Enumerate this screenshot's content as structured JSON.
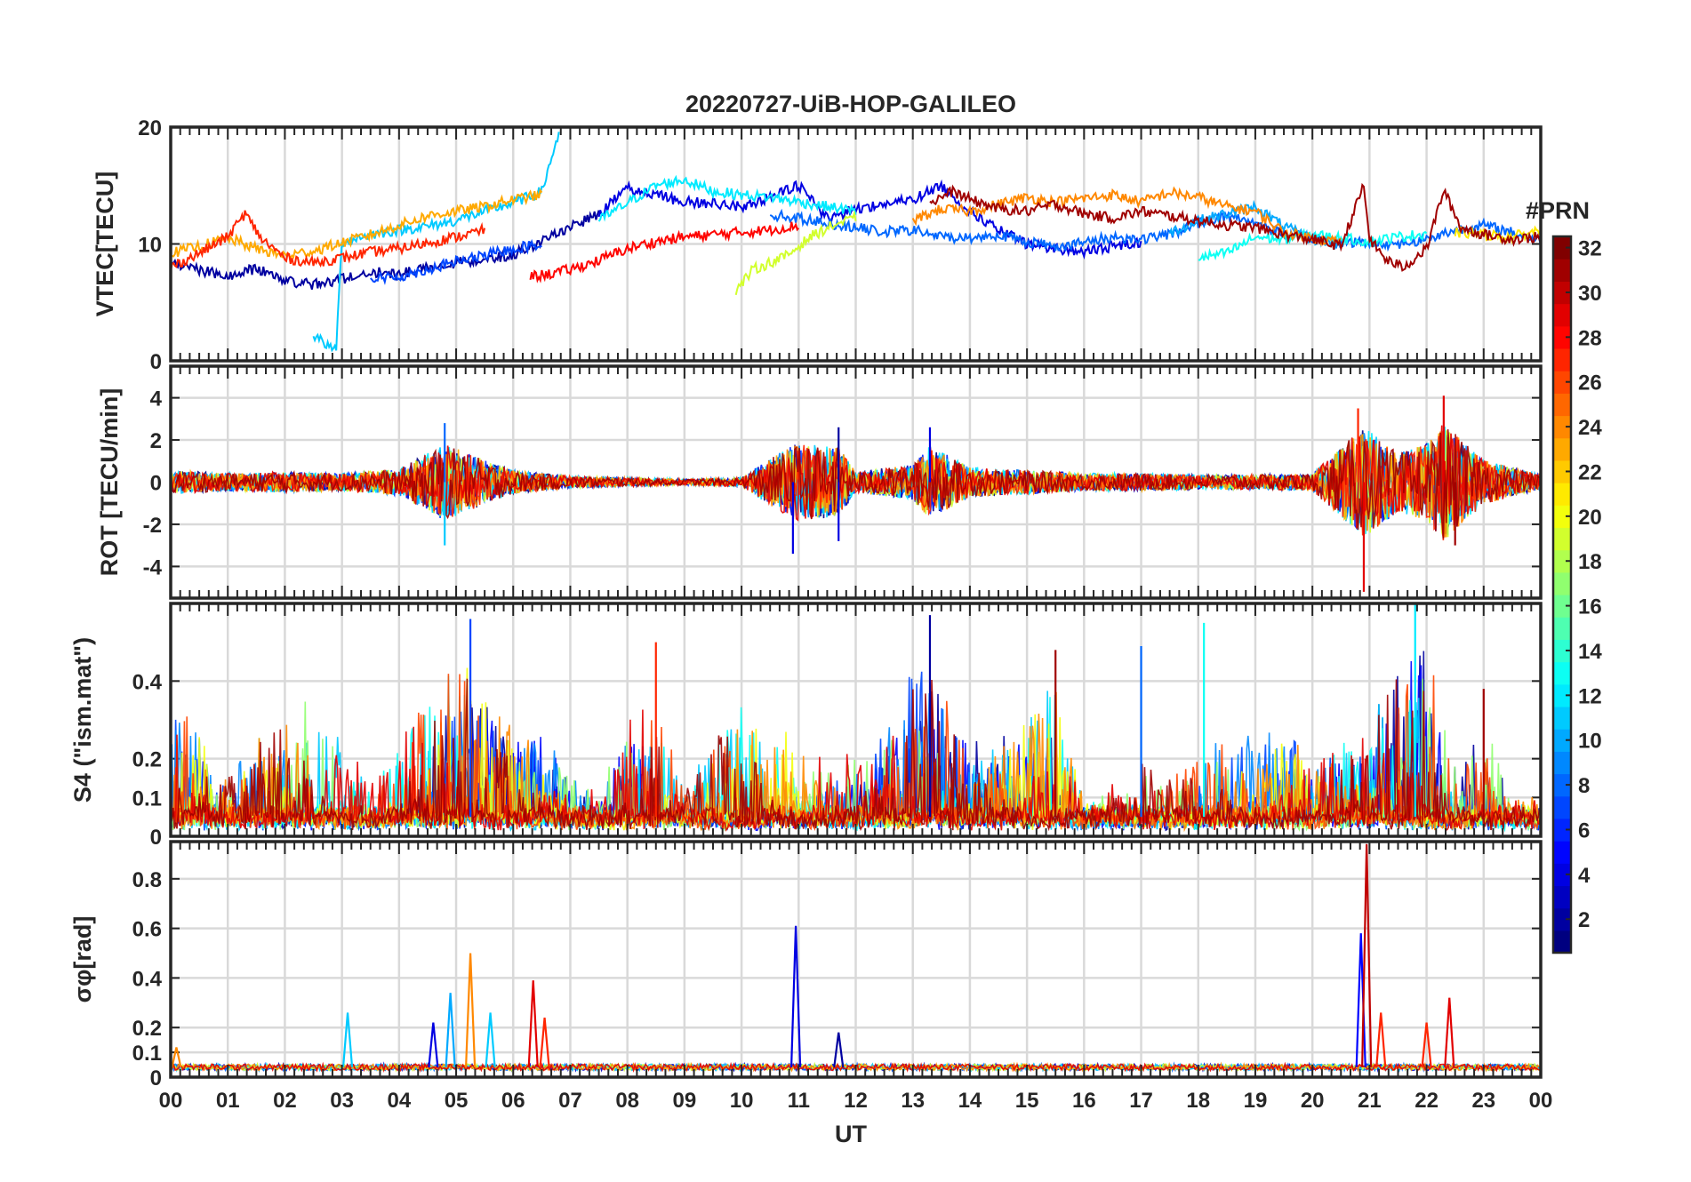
{
  "figure": {
    "title": "20220727-UiB-HOP-GALILEO",
    "xlabel": "UT"
  },
  "colorbar": {
    "title": "#PRN",
    "range": [
      1,
      32
    ],
    "colormap": "jet",
    "tick_labels": [
      "2",
      "4",
      "6",
      "8",
      "10",
      "12",
      "14",
      "16",
      "18",
      "20",
      "22",
      "24",
      "26",
      "28",
      "30",
      "32"
    ]
  },
  "chart_data": [
    {
      "type": "line",
      "panel": "vtec",
      "ylabel": "VTEC[TECU]",
      "ylim": [
        0,
        20
      ],
      "yticks": [
        "0",
        "10",
        "20"
      ],
      "xlim_hours": [
        0,
        24
      ],
      "x_tick_labels": [
        "00",
        "01",
        "02",
        "03",
        "04",
        "05",
        "06",
        "07",
        "08",
        "09",
        "10",
        "11",
        "12",
        "13",
        "14",
        "15",
        "16",
        "17",
        "18",
        "19",
        "20",
        "21",
        "22",
        "23",
        "00"
      ],
      "grid": true,
      "series": [
        {
          "prn": 2,
          "x": [
            0,
            0.5,
            1,
            1.5,
            2,
            2.5,
            3,
            3.5,
            4,
            4.5,
            5,
            5.5,
            6,
            6.5,
            7,
            7.5
          ],
          "values": [
            8.5,
            7.8,
            7.2,
            7.9,
            6.9,
            6.5,
            7.0,
            7.6,
            7.4,
            8.0,
            8.4,
            8.7,
            9.1,
            10.2,
            11.5,
            12.5
          ]
        },
        {
          "prn": 4,
          "x": [
            7.5,
            8,
            8.5,
            9,
            9.5,
            10,
            10.5,
            11,
            11.5,
            12,
            12.5,
            13,
            13.5,
            14,
            14.5,
            15,
            15.5,
            16,
            16.5,
            17
          ],
          "values": [
            12.5,
            14.8,
            14.2,
            13.6,
            13.5,
            13.2,
            14.0,
            15.0,
            12.2,
            13.0,
            13.4,
            13.8,
            15.0,
            12.8,
            11.2,
            10.0,
            9.6,
            9.3,
            9.8,
            10.2
          ]
        },
        {
          "prn": 7,
          "x": [
            3.5,
            4,
            4.5,
            5,
            5.5,
            6,
            6.5
          ],
          "values": [
            7.0,
            7.2,
            7.8,
            8.5,
            9.0,
            9.6,
            10.0
          ]
        },
        {
          "prn": 8,
          "x": [
            10.5,
            11,
            11.5,
            12,
            12.5,
            13,
            13.5,
            14,
            14.5,
            15,
            15.5,
            16,
            16.5,
            17,
            17.5,
            18,
            18.5,
            19,
            19.5,
            20,
            20.5,
            21,
            21.5,
            22,
            22.5,
            23,
            23.5,
            24
          ],
          "values": [
            12.5,
            12.2,
            11.8,
            11.4,
            11.0,
            11.2,
            10.6,
            10.5,
            10.8,
            10.2,
            9.8,
            10.1,
            10.6,
            10.4,
            10.8,
            11.8,
            12.4,
            11.9,
            10.8,
            10.5,
            10.2,
            10.1,
            10.0,
            10.4,
            11.2,
            11.6,
            11.0,
            10.2
          ]
        },
        {
          "prn": 10,
          "x": [
            17.5,
            18,
            18.5,
            19,
            19.5,
            20,
            20.5
          ],
          "values": [
            11.0,
            12.0,
            12.6,
            13.2,
            11.5,
            10.4,
            10.0
          ]
        },
        {
          "prn": 11,
          "x": [
            2.5,
            2.7,
            2.8,
            2.9,
            3.0,
            3.5,
            4,
            4.5,
            5,
            5.5,
            6,
            6.5,
            6.8
          ],
          "values": [
            2.2,
            1.5,
            1.0,
            1.2,
            10.2,
            10.8,
            11.2,
            11.5,
            12.0,
            12.8,
            13.5,
            14.5,
            19.5
          ]
        },
        {
          "prn": 12,
          "x": [
            7.5,
            8,
            8.5,
            9.0,
            9.5,
            10,
            10.5,
            11,
            11.5,
            12
          ],
          "values": [
            12.0,
            13.5,
            15.0,
            15.5,
            14.5,
            14.2,
            14.0,
            13.6,
            13.2,
            12.8
          ]
        },
        {
          "prn": 13,
          "x": [
            18.0,
            18.5,
            19,
            19.5,
            20,
            20.5,
            21,
            21.5,
            22
          ],
          "values": [
            8.8,
            9.2,
            10.6,
            10.4,
            10.8,
            10.5,
            10.2,
            10.6,
            10.9
          ]
        },
        {
          "prn": 19,
          "x": [
            9.9,
            10.2,
            10.5,
            10.8,
            11.2,
            11.6,
            12
          ],
          "values": [
            6.0,
            7.8,
            8.4,
            9.0,
            10.6,
            11.6,
            12.2
          ]
        },
        {
          "prn": 21,
          "x": [
            22.5,
            23,
            23.5,
            24
          ],
          "values": [
            11.0,
            10.8,
            10.6,
            11.2
          ]
        },
        {
          "prn": 23,
          "x": [
            0,
            0.5,
            1,
            1.5,
            2,
            2.5,
            3,
            3.5,
            4,
            4.5,
            5,
            5.5,
            6,
            6.5
          ],
          "values": [
            9.2,
            9.8,
            10.5,
            9.6,
            9.0,
            9.4,
            10.1,
            10.8,
            11.6,
            12.4,
            12.8,
            13.2,
            13.8,
            14.2
          ]
        },
        {
          "prn": 24,
          "x": [
            13,
            13.5,
            14,
            14.5,
            15,
            15.5,
            16,
            16.5,
            17,
            17.5,
            18,
            18.5,
            19,
            19.5,
            20,
            20.5
          ],
          "values": [
            12.0,
            13.0,
            12.8,
            13.4,
            14.0,
            13.6,
            13.9,
            14.2,
            13.6,
            14.4,
            14.0,
            13.2,
            12.8,
            11.0,
            10.5,
            10.2
          ]
        },
        {
          "prn": 27,
          "x": [
            0,
            0.5,
            1,
            1.3,
            1.6,
            2,
            2.5,
            3,
            3.5,
            4,
            4.5,
            5,
            5.5
          ],
          "values": [
            8.0,
            9.2,
            10.6,
            12.6,
            10.4,
            8.8,
            8.4,
            8.8,
            9.3,
            9.6,
            10.1,
            10.6,
            11.2
          ]
        },
        {
          "prn": 28,
          "x": [
            6.3,
            6.6,
            7,
            7.5,
            8,
            8.5,
            9,
            9.5,
            10,
            10.5,
            11
          ],
          "values": [
            7.2,
            7.4,
            7.8,
            8.6,
            9.6,
            10.2,
            10.6,
            10.8,
            11.0,
            11.2,
            11.6
          ]
        },
        {
          "prn": 31,
          "x": [
            13.3,
            13.7,
            14,
            14.5,
            15,
            15.5,
            16,
            16.5,
            17,
            17.5,
            18,
            18.5,
            19,
            19.5,
            20,
            20.5,
            20.9,
            21,
            21.3,
            21.6,
            22,
            22.3,
            22.6,
            23,
            23.5,
            24
          ],
          "values": [
            13.5,
            14.5,
            13.8,
            13.0,
            12.8,
            13.4,
            12.6,
            12.2,
            12.8,
            12.4,
            12.0,
            11.6,
            11.4,
            10.8,
            10.4,
            9.8,
            15.0,
            10.4,
            8.6,
            8.0,
            9.6,
            14.6,
            11.4,
            10.8,
            10.4,
            10.6
          ]
        }
      ]
    },
    {
      "type": "line",
      "panel": "rot",
      "ylabel": "ROT [TECU/min]",
      "ylim": [
        -5.5,
        5.5
      ],
      "yticks": [
        "-4",
        "-2",
        "0",
        "2",
        "4"
      ],
      "xlim_hours": [
        0,
        24
      ],
      "grid": true,
      "activity_envelope": {
        "x": [
          0,
          1,
          2,
          3,
          4,
          4.8,
          5.5,
          6,
          7,
          8,
          9,
          10,
          10.9,
          11.7,
          12,
          13,
          13.3,
          14,
          15,
          16,
          17,
          18,
          19,
          20,
          20.9,
          21.5,
          22,
          22.3,
          23,
          24
        ],
        "amplitude": [
          0.8,
          0.6,
          0.7,
          0.6,
          0.9,
          2.6,
          1.5,
          0.8,
          0.4,
          0.3,
          0.2,
          0.3,
          2.6,
          2.4,
          0.7,
          1.2,
          2.5,
          1.0,
          0.8,
          0.6,
          0.6,
          0.5,
          0.5,
          0.6,
          3.8,
          2.0,
          2.6,
          4.0,
          1.5,
          0.5
        ]
      },
      "spikes": [
        {
          "x": 4.8,
          "value": 2.8,
          "prn": 8
        },
        {
          "x": 4.8,
          "value": -3.0,
          "prn": 11
        },
        {
          "x": 10.9,
          "value": -3.4,
          "prn": 4
        },
        {
          "x": 11.7,
          "value": 2.6,
          "prn": 2
        },
        {
          "x": 11.7,
          "value": -2.8,
          "prn": 4
        },
        {
          "x": 13.3,
          "value": 2.6,
          "prn": 4
        },
        {
          "x": 20.8,
          "value": 3.5,
          "prn": 27
        },
        {
          "x": 20.9,
          "value": -5.2,
          "prn": 29
        },
        {
          "x": 22.3,
          "value": 4.1,
          "prn": 29
        },
        {
          "x": 22.5,
          "value": -3.0,
          "prn": 31
        }
      ]
    },
    {
      "type": "line",
      "panel": "s4",
      "ylabel": "S4 (\"ism.mat\")",
      "ylim": [
        0,
        0.6
      ],
      "yticks": [
        "0",
        "0.1",
        "0.2",
        "0.4"
      ],
      "xlim_hours": [
        0,
        24
      ],
      "grid": true,
      "activity_envelope": {
        "x": [
          0,
          0.3,
          1,
          2,
          2.5,
          3,
          3.5,
          4,
          4.5,
          5,
          5.5,
          6,
          6.5,
          7,
          7.5,
          8,
          8.5,
          9,
          10,
          10.5,
          11,
          11.5,
          12,
          12.5,
          13,
          13.3,
          13.5,
          14,
          14.5,
          15,
          15.5,
          16,
          17,
          17.5,
          18,
          18.5,
          19,
          19.5,
          20,
          20.5,
          21,
          21.3,
          21.7,
          22,
          22.5,
          23,
          23.5,
          24
        ],
        "peak": [
          0.45,
          0.35,
          0.15,
          0.45,
          0.48,
          0.3,
          0.15,
          0.3,
          0.45,
          0.57,
          0.45,
          0.3,
          0.3,
          0.15,
          0.1,
          0.38,
          0.5,
          0.1,
          0.45,
          0.33,
          0.33,
          0.25,
          0.25,
          0.33,
          0.48,
          0.57,
          0.45,
          0.25,
          0.3,
          0.35,
          0.48,
          0.1,
          0.2,
          0.15,
          0.25,
          0.35,
          0.3,
          0.3,
          0.2,
          0.25,
          0.35,
          0.5,
          0.6,
          0.58,
          0.2,
          0.35,
          0.15,
          0.1
        ]
      },
      "peaks": [
        {
          "x": 5.25,
          "value": 0.56,
          "prn": 7
        },
        {
          "x": 8.5,
          "value": 0.5,
          "prn": 27
        },
        {
          "x": 13.3,
          "value": 0.57,
          "prn": 2
        },
        {
          "x": 15.5,
          "value": 0.48,
          "prn": 31
        },
        {
          "x": 17.0,
          "value": 0.49,
          "prn": 8
        },
        {
          "x": 18.1,
          "value": 0.55,
          "prn": 13
        },
        {
          "x": 21.8,
          "value": 0.6,
          "prn": 12
        },
        {
          "x": 23.0,
          "value": 0.38,
          "prn": 31
        }
      ]
    },
    {
      "type": "line",
      "panel": "sigma_phi",
      "ylabel": "σφ[rad]",
      "ylim": [
        0,
        0.95
      ],
      "yticks": [
        "0",
        "0.1",
        "0.2",
        "0.4",
        "0.6",
        "0.8"
      ],
      "xlim_hours": [
        0,
        24
      ],
      "grid": true,
      "baseline": 0.04,
      "peaks": [
        {
          "x": 0.1,
          "value": 0.12,
          "prn": 24
        },
        {
          "x": 3.1,
          "value": 0.26,
          "prn": 11
        },
        {
          "x": 4.6,
          "value": 0.22,
          "prn": 4
        },
        {
          "x": 4.9,
          "value": 0.34,
          "prn": 10
        },
        {
          "x": 5.25,
          "value": 0.5,
          "prn": 24
        },
        {
          "x": 5.6,
          "value": 0.26,
          "prn": 11
        },
        {
          "x": 6.35,
          "value": 0.39,
          "prn": 29
        },
        {
          "x": 6.55,
          "value": 0.24,
          "prn": 27
        },
        {
          "x": 10.95,
          "value": 0.61,
          "prn": 4
        },
        {
          "x": 11.7,
          "value": 0.18,
          "prn": 2
        },
        {
          "x": 20.85,
          "value": 0.58,
          "prn": 5
        },
        {
          "x": 20.95,
          "value": 0.94,
          "prn": 30
        },
        {
          "x": 21.2,
          "value": 0.26,
          "prn": 27
        },
        {
          "x": 22.0,
          "value": 0.22,
          "prn": 27
        },
        {
          "x": 22.4,
          "value": 0.32,
          "prn": 29
        }
      ]
    }
  ]
}
